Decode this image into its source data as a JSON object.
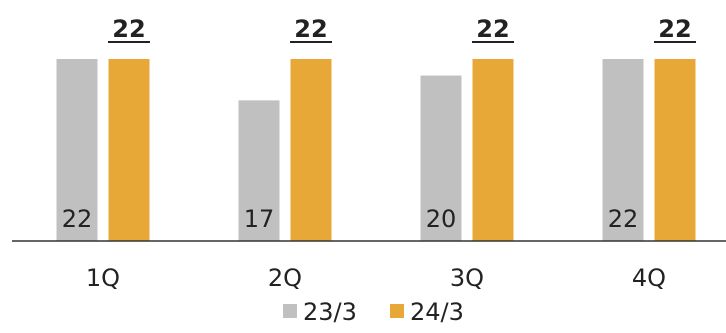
{
  "chart_data": {
    "type": "bar",
    "categories": [
      "1Q",
      "2Q",
      "3Q",
      "4Q"
    ],
    "series": [
      {
        "name": "23/3",
        "values": [
          22,
          17,
          20,
          22
        ],
        "color": "#c0c0c0",
        "label_position": "inside-bottom"
      },
      {
        "name": "24/3",
        "values": [
          22,
          22,
          22,
          22
        ],
        "color": "#e8a838",
        "label_position": "above-bold-underlined"
      }
    ],
    "title": "",
    "xlabel": "",
    "ylabel": "",
    "ylim": [
      0,
      24
    ],
    "grid": false,
    "legend_position": "bottom-center"
  }
}
